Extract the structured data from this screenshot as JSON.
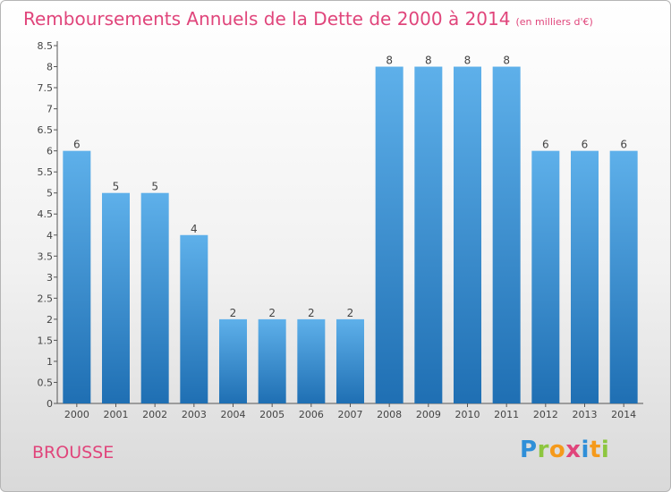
{
  "chart_data": {
    "type": "bar",
    "title": "Remboursements Annuels de la Dette de 2000 à 2014",
    "unit": "(en milliers d'€)",
    "categories": [
      "2000",
      "2001",
      "2002",
      "2003",
      "2004",
      "2005",
      "2006",
      "2007",
      "2008",
      "2009",
      "2010",
      "2011",
      "2012",
      "2013",
      "2014"
    ],
    "values": [
      6,
      5,
      5,
      4,
      2,
      2,
      2,
      2,
      8,
      8,
      8,
      8,
      6,
      6,
      6
    ],
    "ylim": [
      0,
      8.5
    ],
    "yticks": [
      "0",
      "0.5",
      "1",
      "1.5",
      "2",
      "2.5",
      "3",
      "3.5",
      "4",
      "4.5",
      "5",
      "5.5",
      "6",
      "6.5",
      "7",
      "7.5",
      "8",
      "8.5"
    ],
    "xlabel": "",
    "ylabel": "",
    "grid": false
  },
  "footer": {
    "town": "BROUSSE",
    "brand": [
      "P",
      "r",
      "o",
      "x",
      "i",
      "t",
      "i"
    ]
  },
  "colors": {
    "bar_light": "#5eb0ea",
    "bar_dark": "#1f6fb3",
    "title": "#e0457b"
  }
}
